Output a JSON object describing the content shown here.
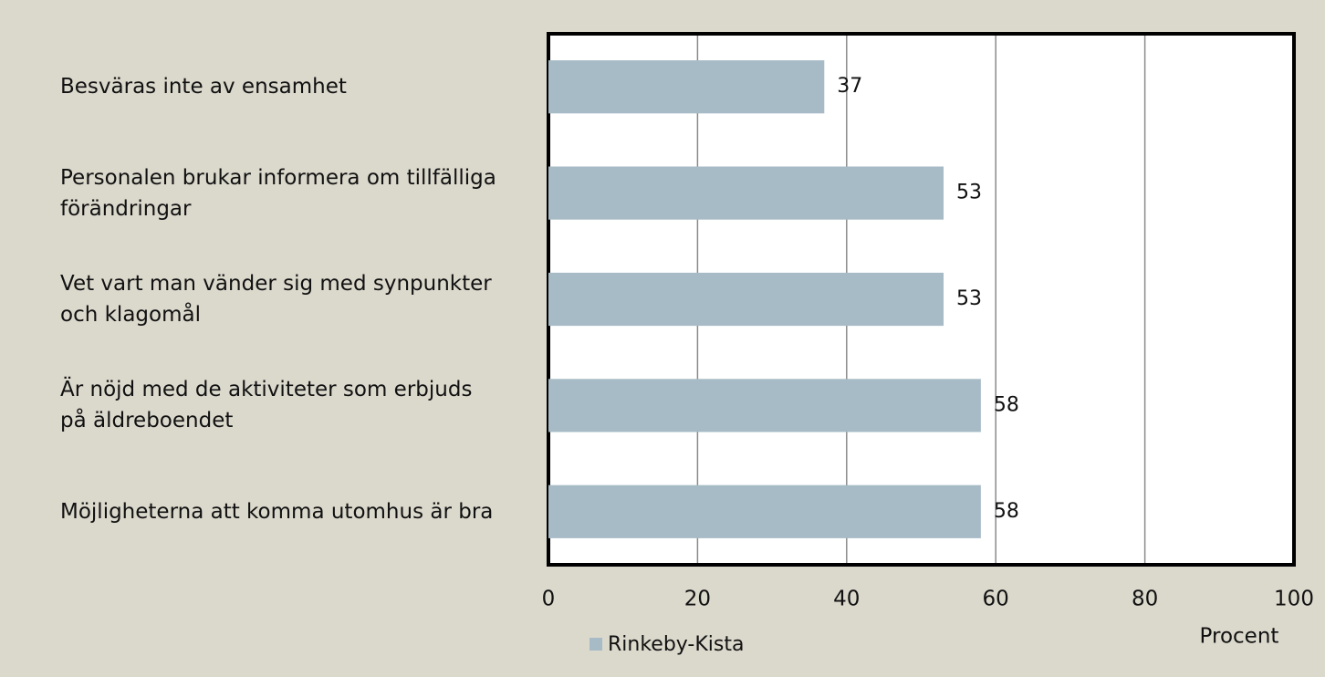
{
  "chart_data": {
    "type": "bar",
    "orientation": "horizontal",
    "categories": [
      "Besväras inte av ensamhet",
      "Personalen brukar informera om tillfälliga förändringar",
      "Vet vart man vänder sig med synpunkter och klagomål",
      "Är nöjd med de aktiviteter som erbjuds på äldreboendet",
      "Möjligheterna att komma utomhus är bra"
    ],
    "series": [
      {
        "name": "Rinkeby-Kista",
        "color": "#a7bbc6",
        "values": [
          37,
          53,
          53,
          58,
          58
        ]
      }
    ],
    "xlim": [
      0,
      100
    ],
    "xticks": [
      0,
      20,
      40,
      60,
      80,
      100
    ],
    "xlabel": "Procent",
    "grid": true
  }
}
